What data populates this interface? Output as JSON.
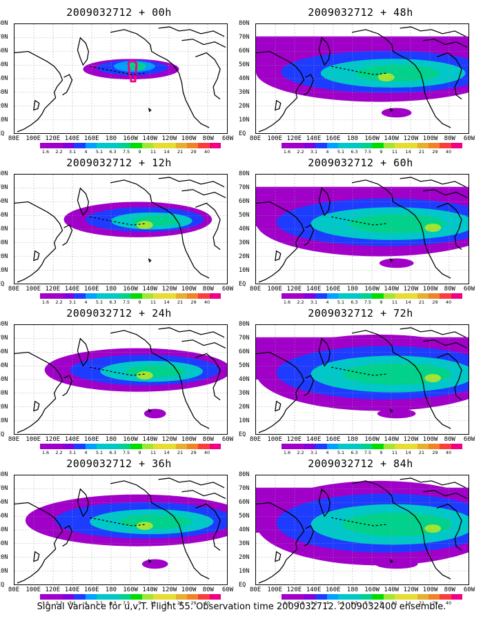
{
  "panels": [
    {
      "title": "2009032712 + 00h",
      "level": 0
    },
    {
      "title": "2009032712 + 48h",
      "level": 4
    },
    {
      "title": "2009032712 + 12h",
      "level": 1
    },
    {
      "title": "2009032712 + 60h",
      "level": 5
    },
    {
      "title": "2009032712 + 24h",
      "level": 2
    },
    {
      "title": "2009032712 + 72h",
      "level": 6
    },
    {
      "title": "2009032712 + 36h",
      "level": 3
    },
    {
      "title": "2009032712 + 84h",
      "level": 7
    }
  ],
  "lat_labels": [
    "80N",
    "70N",
    "60N",
    "50N",
    "40N",
    "30N",
    "20N",
    "10N",
    "EQ"
  ],
  "lon_labels": [
    "80E",
    "100E",
    "120E",
    "140E",
    "160E",
    "180",
    "160W",
    "140W",
    "120W",
    "100W",
    "80W",
    "60W"
  ],
  "colorbar": {
    "values": [
      "1.6",
      "2.2",
      "3.1",
      "4",
      "5.1",
      "6.3",
      "7.5",
      "9",
      "11",
      "14",
      "21",
      "29",
      "40"
    ],
    "colors": [
      "#a000c8",
      "#8200dc",
      "#1e3cff",
      "#00a0ff",
      "#00c8c8",
      "#00d28c",
      "#00dc00",
      "#a0e632",
      "#e6dc32",
      "#e6af2d",
      "#f08228",
      "#fa3c3c",
      "#f00082"
    ]
  },
  "footer": "Signal Variance for u,v,T. Flight 55. Observation time 2009032712. 2009032400 ensemble."
}
